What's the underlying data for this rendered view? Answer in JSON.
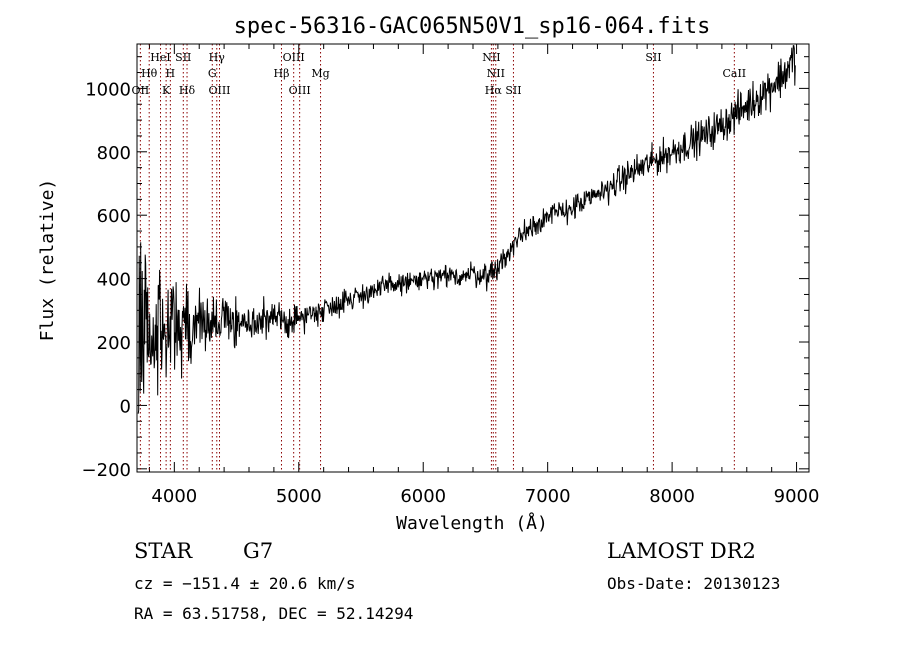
{
  "chart_data": {
    "type": "line",
    "title": "spec-56316-GAC065N50V1_sp16-064.fits",
    "xlabel": "Wavelength (Å)",
    "ylabel": "Flux (relative)",
    "xlim": [
      3700,
      9100
    ],
    "ylim": [
      -210,
      1140
    ],
    "xticks": [
      4000,
      5000,
      6000,
      7000,
      8000,
      9000
    ],
    "yticks": [
      -200,
      0,
      200,
      400,
      600,
      800,
      1000
    ],
    "grid": false,
    "series": [
      {
        "x": [
          3710,
          3730,
          3760,
          3800,
          3850,
          3900,
          3950,
          4000,
          4050,
          4100,
          4150,
          4200,
          4300,
          4400,
          4500,
          4600,
          4700,
          4800,
          4900,
          5000,
          5100,
          5200,
          5300,
          5400,
          5500,
          5600,
          5700,
          5800,
          5900,
          6000,
          6100,
          6200,
          6300,
          6400,
          6500,
          6560,
          6600,
          6650,
          6700,
          6750,
          6800,
          6850,
          6900,
          7000,
          7100,
          7200,
          7300,
          7400,
          7500,
          7600,
          7700,
          7800,
          7900,
          8000,
          8100,
          8200,
          8300,
          8400,
          8500,
          8600,
          8700,
          8800,
          8900,
          8950,
          8990
        ],
        "y": [
          150,
          250,
          180,
          200,
          230,
          240,
          250,
          240,
          260,
          250,
          245,
          260,
          255,
          270,
          265,
          255,
          265,
          270,
          265,
          275,
          290,
          305,
          320,
          335,
          350,
          360,
          375,
          385,
          390,
          395,
          400,
          405,
          410,
          415,
          410,
          420,
          440,
          460,
          490,
          520,
          545,
          560,
          575,
          595,
          610,
          625,
          640,
          665,
          690,
          715,
          740,
          760,
          780,
          800,
          820,
          840,
          860,
          885,
          915,
          945,
          975,
          1010,
          1045,
          1075,
          1100
        ],
        "noise": [
          0,
          0,
          0.25,
          0.35,
          0.45,
          0.45,
          0.45,
          0.38,
          0.35,
          0.32,
          0.3,
          0.28,
          0.22,
          0.2,
          0.17,
          0.15,
          0.14,
          0.12,
          0.12,
          0.1,
          0.09,
          0.08,
          0.08,
          0.07,
          0.07,
          0.06,
          0.06,
          0.06,
          0.06,
          0.06,
          0.06,
          0.06,
          0.06,
          0.06,
          0.06,
          0.06,
          0.06,
          0.06,
          0.05,
          0.05,
          0.05,
          0.05,
          0.05,
          0.04,
          0.04,
          0.04,
          0.04,
          0.04,
          0.04,
          0.04,
          0.04,
          0.04,
          0.04,
          0.04,
          0.04,
          0.04,
          0.04,
          0.04,
          0.04,
          0.04,
          0.04,
          0.04,
          0.04,
          0.04,
          0.04
        ]
      }
    ],
    "lines": [
      {
        "label": "Hθ",
        "x": 3798,
        "row": 2
      },
      {
        "label": "OII",
        "x": 3727,
        "row": 3
      },
      {
        "label": "HeI",
        "x": 3889,
        "row": 1
      },
      {
        "label": "H",
        "x": 3968,
        "row": 2
      },
      {
        "label": "K",
        "x": 3934,
        "row": 3
      },
      {
        "label": "SII",
        "x": 4072,
        "row": 1
      },
      {
        "label": "Hδ",
        "x": 4102,
        "row": 3
      },
      {
        "label": "Hγ",
        "x": 4341,
        "row": 1
      },
      {
        "label": "G",
        "x": 4305,
        "row": 2
      },
      {
        "label": "OIII",
        "x": 4363,
        "row": 3
      },
      {
        "label": "OIII",
        "x": 4959,
        "row": 1
      },
      {
        "label": "Hβ",
        "x": 4861,
        "row": 2
      },
      {
        "label": "OIII",
        "x": 5007,
        "row": 3
      },
      {
        "label": "Mg",
        "x": 5175,
        "row": 2
      },
      {
        "label": "NII",
        "x": 6548,
        "row": 1
      },
      {
        "label": "NII",
        "x": 6583,
        "row": 2
      },
      {
        "label": "Hα",
        "x": 6563,
        "row": 3
      },
      {
        "label": "SII",
        "x": 6725,
        "row": 3
      },
      {
        "label": "SII",
        "x": 7850,
        "row": 1
      },
      {
        "label": "CaII",
        "x": 8500,
        "row": 2
      }
    ]
  },
  "info": {
    "class": "STAR",
    "subclass": "G7",
    "survey": "LAMOST DR2",
    "cz": "cz = −151.4 ± 20.6 km/s",
    "obs_date": "Obs-Date: 20130123",
    "coords": "RA =  63.51758, DEC =  52.14294"
  }
}
